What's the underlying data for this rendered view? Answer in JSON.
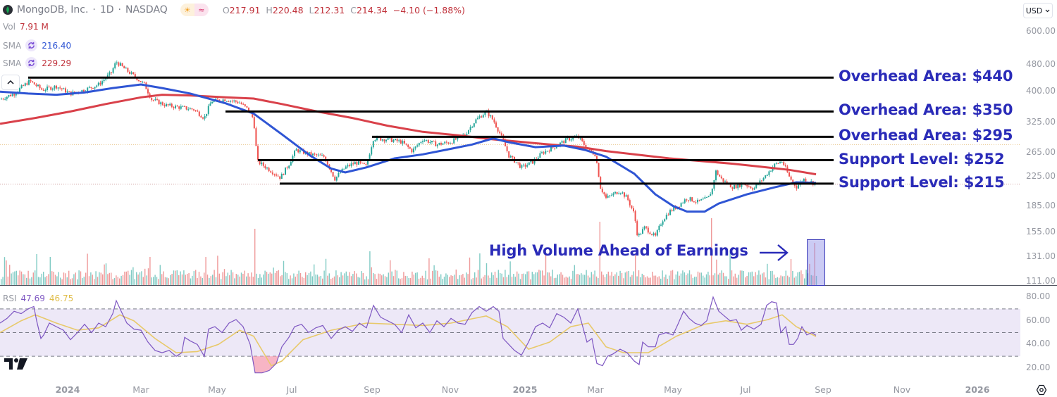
{
  "header": {
    "symbol_name": "MongoDB, Inc.",
    "interval": "1D",
    "exchange": "NASDAQ",
    "separator": "·",
    "ohlc": {
      "open_label": "O",
      "open": "217.91",
      "high_label": "H",
      "high": "220.48",
      "low_label": "L",
      "low": "212.31",
      "close_label": "C",
      "close": "214.34",
      "change": "−4.10 (−1.88%)"
    },
    "market_status_icons": [
      "sun-icon",
      "approx-icon"
    ]
  },
  "legend": {
    "volume": {
      "label": "Vol",
      "value": "7.91 M"
    },
    "sma_fast": {
      "label": "SMA",
      "value": "216.40",
      "color": "#2f55d4"
    },
    "sma_slow": {
      "label": "SMA",
      "value": "229.29",
      "color": "#d9414a"
    }
  },
  "currency_button": {
    "label": "USD",
    "icon": "chevron-down-icon"
  },
  "price_axis": {
    "labels": [
      "600.00",
      "480.00",
      "400.00",
      "325.00",
      "265.00",
      "225.00",
      "185.00",
      "155.00",
      "131.00",
      "111.00"
    ]
  },
  "rsi_panel": {
    "label": "RSI",
    "value": "47.69",
    "ma_value": "46.75",
    "rsi_color": "#7e57c2",
    "ma_color": "#e8c96a",
    "axis_labels": [
      "80.00",
      "60.00",
      "40.00",
      "20.00"
    ]
  },
  "time_axis": {
    "labels": [
      {
        "text": "2024",
        "bold": true
      },
      {
        "text": "Mar",
        "bold": false
      },
      {
        "text": "May",
        "bold": false
      },
      {
        "text": "Jul",
        "bold": false
      },
      {
        "text": "Sep",
        "bold": false
      },
      {
        "text": "Nov",
        "bold": false
      },
      {
        "text": "2025",
        "bold": true
      },
      {
        "text": "Mar",
        "bold": false
      },
      {
        "text": "May",
        "bold": false
      },
      {
        "text": "Jul",
        "bold": false
      },
      {
        "text": "Sep",
        "bold": false
      },
      {
        "text": "Nov",
        "bold": false
      },
      {
        "text": "2026",
        "bold": true
      }
    ]
  },
  "annotations": {
    "levels": [
      {
        "label": "Overhead Area: $440",
        "price": 440
      },
      {
        "label": "Overhead Area: $350",
        "price": 350
      },
      {
        "label": "Overhead Area: $295",
        "price": 295
      },
      {
        "label": "Support Level: $252",
        "price": 252
      },
      {
        "label": "Support Level: $215",
        "price": 215
      }
    ],
    "volume_note": "High Volume Ahead of Earnings",
    "annotation_color": "#2a2bb8"
  },
  "colors": {
    "up": "#26a69a",
    "down": "#ef5350",
    "sma_fast": "#2f55d4",
    "sma_slow": "#d9414a",
    "level_line": "#000000"
  },
  "chart_data": {
    "type": "candlestick",
    "title": "MongoDB, Inc. · 1D · NASDAQ",
    "scale": "log",
    "ylim": [
      111,
      600
    ],
    "x_range": [
      "2023-12",
      "2026-02"
    ],
    "last_bar": {
      "open": 217.91,
      "high": 220.48,
      "low": 212.31,
      "close": 214.34,
      "change": -4.1,
      "change_pct": -1.88,
      "volume": "7.91M"
    },
    "series": [
      {
        "name": "Close (approx.)",
        "x": [
          "2023-12",
          "2024-01",
          "2024-02",
          "2024-03",
          "2024-04",
          "2024-05",
          "2024-06",
          "2024-07",
          "2024-08",
          "2024-09",
          "2024-10",
          "2024-11",
          "2024-12",
          "2025-01",
          "2025-02",
          "2025-03",
          "2025-04",
          "2025-05",
          "2025-06",
          "2025-07",
          "2025-08"
        ],
        "values": [
          395,
          430,
          480,
          370,
          355,
          240,
          235,
          255,
          245,
          285,
          270,
          330,
          260,
          265,
          280,
          185,
          165,
          195,
          210,
          220,
          214
        ]
      },
      {
        "name": "SMA (50)",
        "last_value": 216.4,
        "values_approx": [
          380,
          390,
          415,
          400,
          360,
          300,
          245,
          240,
          255,
          270,
          280,
          290,
          270,
          275,
          280,
          250,
          190,
          175,
          190,
          205,
          216
        ]
      },
      {
        "name": "SMA (200)",
        "last_value": 229.29,
        "values_approx": [
          310,
          330,
          370,
          385,
          380,
          370,
          340,
          320,
          300,
          295,
          290,
          285,
          280,
          278,
          275,
          260,
          250,
          245,
          240,
          235,
          229
        ]
      }
    ],
    "horizontal_levels": [
      {
        "label": "Overhead Area",
        "value": 440
      },
      {
        "label": "Overhead Area",
        "value": 350
      },
      {
        "label": "Overhead Area",
        "value": 295
      },
      {
        "label": "Support Level",
        "value": 252
      },
      {
        "label": "Support Level",
        "value": 215
      }
    ],
    "rsi": {
      "label": "RSI",
      "value": 47.69,
      "ma": 46.75,
      "ylim": [
        15,
        85
      ],
      "bands": [
        30,
        50,
        70
      ]
    },
    "annotations": [
      "High Volume Ahead of Earnings"
    ],
    "y_ticks": [
      600,
      480,
      400,
      325,
      265,
      225,
      185,
      155,
      131,
      111
    ],
    "x_ticks": [
      "2024",
      "Mar",
      "May",
      "Jul",
      "Sep",
      "Nov",
      "2025",
      "Mar",
      "May",
      "Jul",
      "Sep",
      "Nov",
      "2026"
    ]
  }
}
